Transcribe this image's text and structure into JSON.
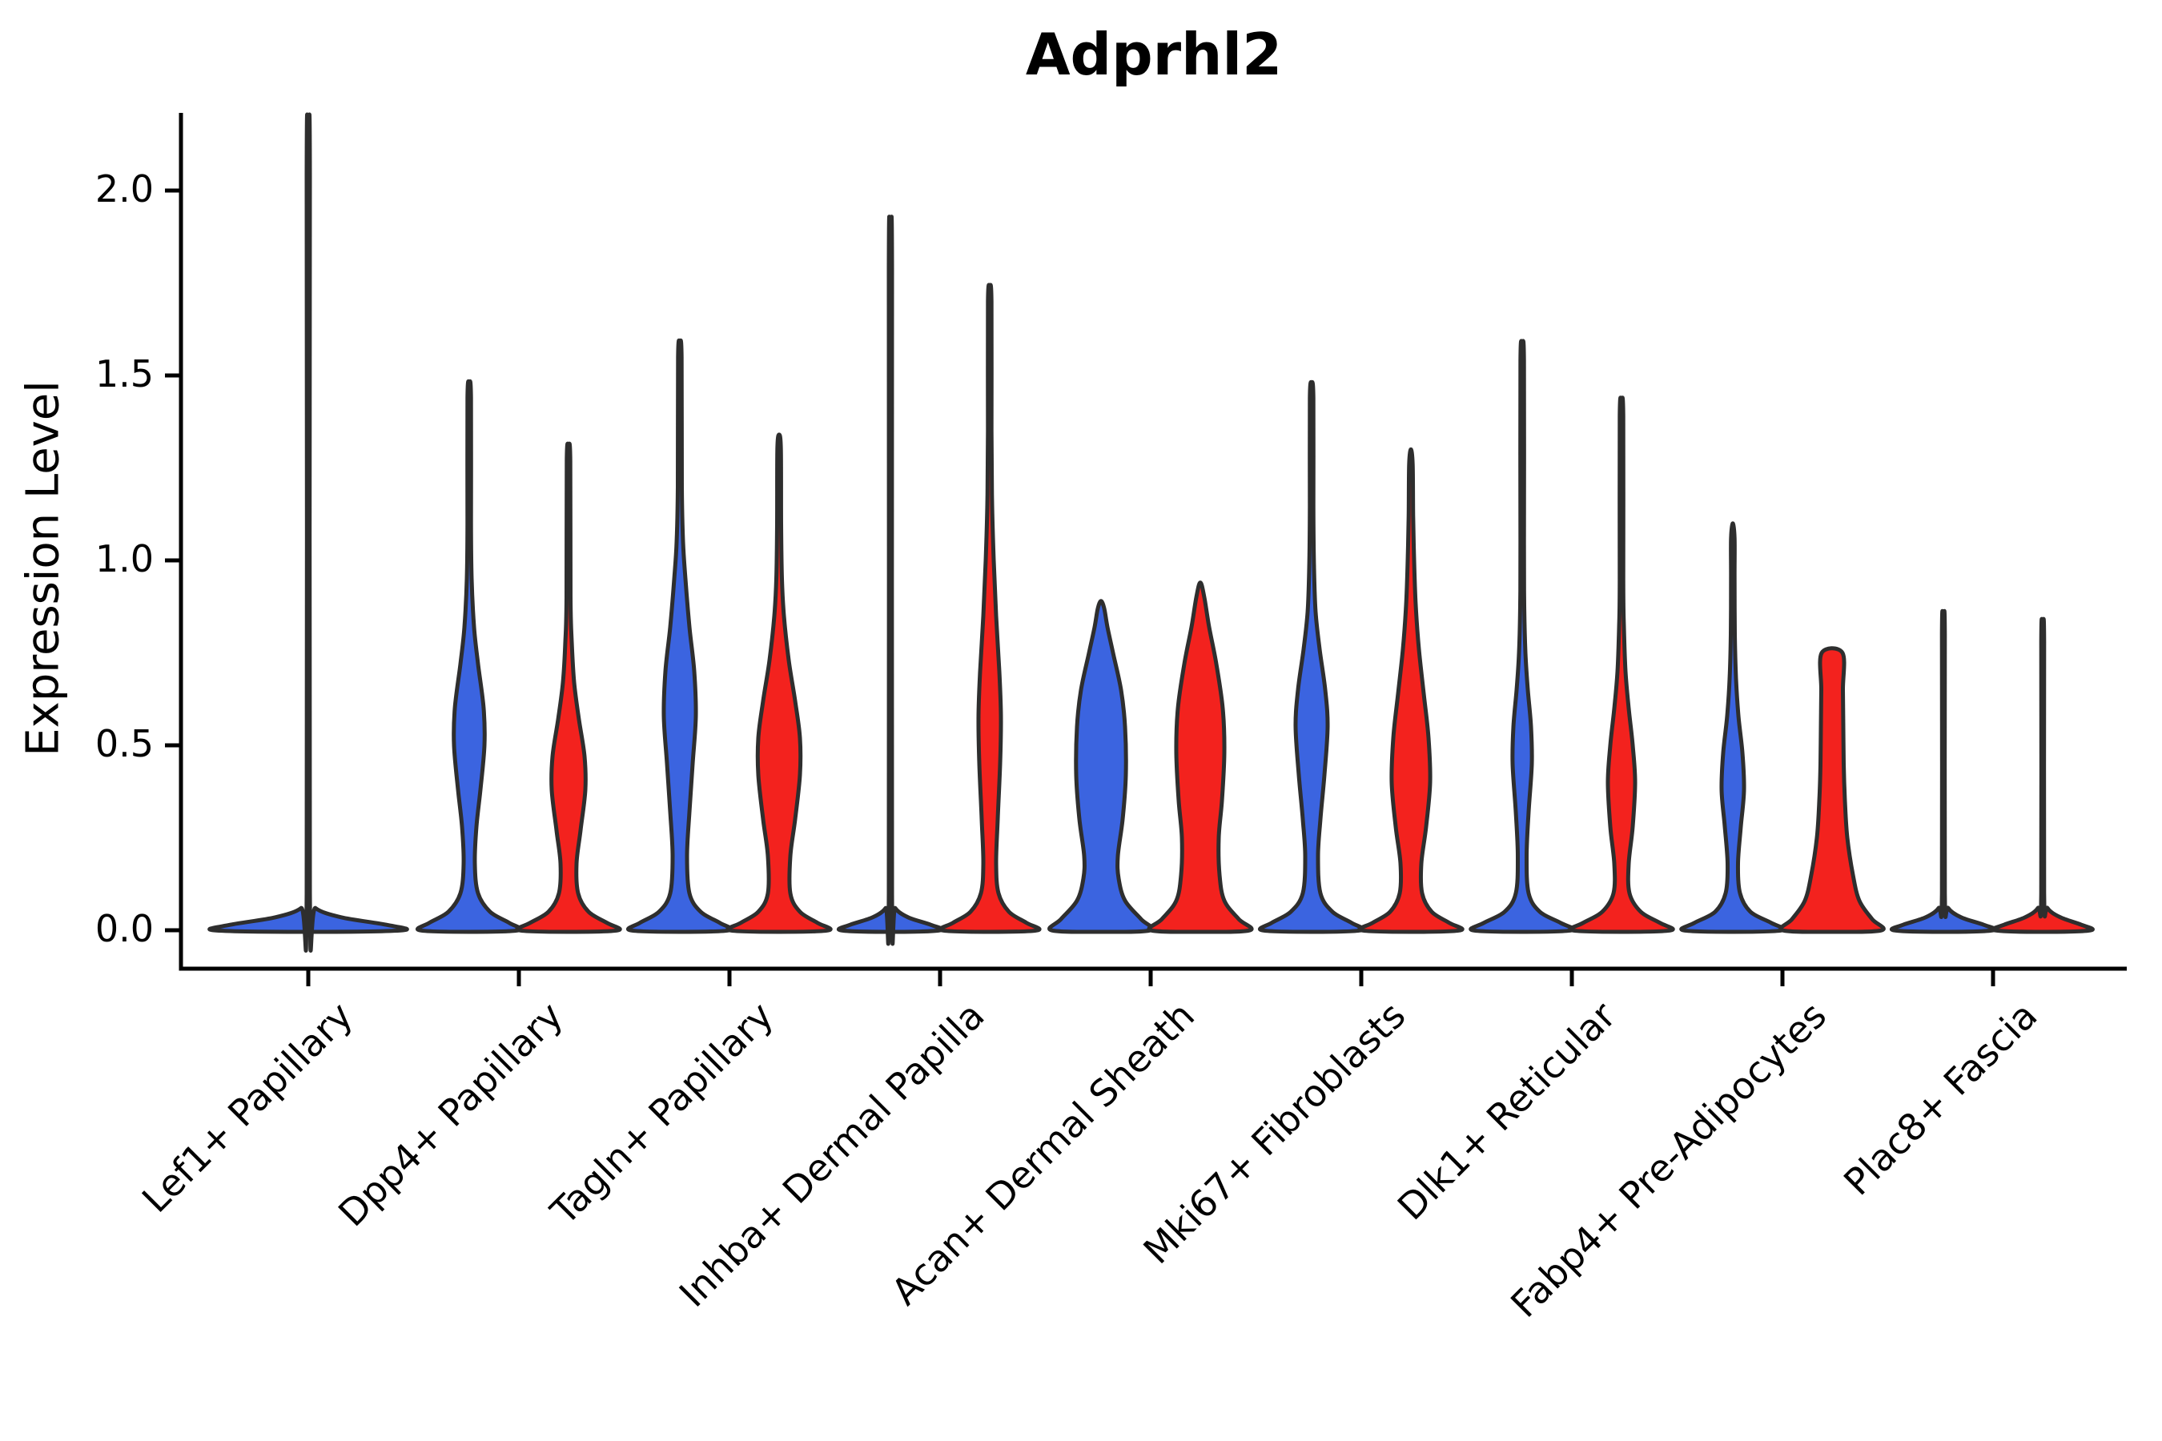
{
  "title": "Adprhl2",
  "y_axis": {
    "label": "Expression Level",
    "tick_labels": [
      "2.0",
      "1.5",
      "1.0",
      "0.5",
      "0.0"
    ],
    "tick_values": [
      2.0,
      1.5,
      1.0,
      0.5,
      0.0
    ]
  },
  "x_axis": {
    "categories": [
      "Lef1+ Papillary",
      "Dpp4+ Papillary",
      "Tagln+ Papillary",
      "Inhba+ Dermal Papilla",
      "Acan+ Dermal Sheath",
      "Mki67+ Fibroblasts",
      "Dlk1+ Reticular",
      "Fabp4+ Pre-Adipocytes",
      "Plac8+ Fascia"
    ]
  },
  "colors": {
    "blue": "#3B64E0",
    "red": "#F3221E",
    "outline": "#2E2E2E",
    "axis": "#000000",
    "background": "#FFFFFF"
  },
  "chart_data": {
    "type": "violin",
    "title": "Adprhl2",
    "xlabel": "",
    "ylabel": "Expression Level",
    "ylim": [
      -0.06,
      2.21
    ],
    "yticks": [
      0.0,
      0.5,
      1.0,
      1.5,
      2.0
    ],
    "grid": false,
    "legend": "none",
    "categories": [
      "Lef1+ Papillary",
      "Dpp4+ Papillary",
      "Tagln+ Papillary",
      "Inhba+ Dermal Papilla",
      "Acan+ Dermal Sheath",
      "Mki67+ Fibroblasts",
      "Dlk1+ Reticular",
      "Fabp4+ Pre-Adipocytes",
      "Plac8+ Fascia"
    ],
    "series": [
      {
        "name": "blue",
        "color": "#3B64E0",
        "max_expression": [
          2.1,
          1.48,
          1.59,
          1.83,
          0.89,
          1.48,
          1.58,
          1.1,
          0.83
        ]
      },
      {
        "name": "red",
        "color": "#F3221E",
        "max_expression": [
          null,
          1.31,
          1.34,
          1.74,
          0.94,
          1.3,
          1.43,
          0.75,
          0.81
        ]
      }
    ],
    "violins": [
      {
        "category_index": 0,
        "side": "single",
        "color": "blue",
        "offset": 0,
        "max": 2.1,
        "profile": [
          [
            0,
            118
          ],
          [
            0.015,
            97
          ],
          [
            0.035,
            41
          ],
          [
            0.06,
            9
          ],
          [
            0.1,
            2
          ],
          [
            2.04,
            2
          ],
          [
            2.1,
            0
          ]
        ]
      },
      {
        "category_index": 1,
        "side": "left",
        "color": "blue",
        "offset": -62,
        "max": 1.48,
        "profile": [
          [
            0,
            62
          ],
          [
            0.02,
            50
          ],
          [
            0.05,
            26
          ],
          [
            0.1,
            11
          ],
          [
            0.18,
            7
          ],
          [
            0.28,
            9
          ],
          [
            0.38,
            14
          ],
          [
            0.5,
            19
          ],
          [
            0.6,
            18
          ],
          [
            0.72,
            11
          ],
          [
            0.82,
            6
          ],
          [
            0.95,
            3
          ],
          [
            1.1,
            2.2
          ],
          [
            1.44,
            2.2
          ],
          [
            1.48,
            0
          ]
        ]
      },
      {
        "category_index": 1,
        "side": "right",
        "color": "red",
        "offset": 62,
        "max": 1.31,
        "profile": [
          [
            0,
            62
          ],
          [
            0.02,
            48
          ],
          [
            0.05,
            25
          ],
          [
            0.1,
            12
          ],
          [
            0.18,
            10
          ],
          [
            0.27,
            15
          ],
          [
            0.38,
            21
          ],
          [
            0.47,
            20
          ],
          [
            0.57,
            13
          ],
          [
            0.67,
            7
          ],
          [
            0.78,
            4
          ],
          [
            0.9,
            2.5
          ],
          [
            1.27,
            2.2
          ],
          [
            1.31,
            0
          ]
        ]
      },
      {
        "category_index": 2,
        "side": "left",
        "color": "blue",
        "offset": -62,
        "max": 1.59,
        "profile": [
          [
            0,
            62
          ],
          [
            0.02,
            50
          ],
          [
            0.05,
            26
          ],
          [
            0.1,
            12
          ],
          [
            0.2,
            9
          ],
          [
            0.32,
            12
          ],
          [
            0.45,
            16
          ],
          [
            0.58,
            20
          ],
          [
            0.7,
            18
          ],
          [
            0.82,
            12
          ],
          [
            0.95,
            7
          ],
          [
            1.05,
            4
          ],
          [
            1.2,
            2.5
          ],
          [
            1.55,
            2.2
          ],
          [
            1.59,
            0
          ]
        ]
      },
      {
        "category_index": 2,
        "side": "right",
        "color": "red",
        "offset": 62,
        "max": 1.34,
        "profile": [
          [
            0,
            62
          ],
          [
            0.02,
            48
          ],
          [
            0.05,
            26
          ],
          [
            0.1,
            14
          ],
          [
            0.2,
            14
          ],
          [
            0.3,
            20
          ],
          [
            0.42,
            26
          ],
          [
            0.52,
            26
          ],
          [
            0.62,
            20
          ],
          [
            0.73,
            12
          ],
          [
            0.85,
            6
          ],
          [
            0.95,
            3.5
          ],
          [
            1.1,
            2.5
          ],
          [
            1.3,
            2.2
          ],
          [
            1.34,
            0
          ]
        ]
      },
      {
        "category_index": 3,
        "side": "left",
        "color": "blue",
        "offset": -62,
        "max": 1.83,
        "profile": [
          [
            0,
            62
          ],
          [
            0.015,
            50
          ],
          [
            0.035,
            22
          ],
          [
            0.06,
            6
          ],
          [
            0.1,
            2
          ],
          [
            1.79,
            2
          ],
          [
            1.83,
            0
          ]
        ]
      },
      {
        "category_index": 3,
        "side": "right",
        "color": "red",
        "offset": 62,
        "max": 1.74,
        "profile": [
          [
            0,
            60
          ],
          [
            0.02,
            46
          ],
          [
            0.05,
            24
          ],
          [
            0.1,
            11
          ],
          [
            0.18,
            8
          ],
          [
            0.3,
            10
          ],
          [
            0.45,
            13
          ],
          [
            0.58,
            14
          ],
          [
            0.7,
            12
          ],
          [
            0.85,
            8
          ],
          [
            1.0,
            5
          ],
          [
            1.15,
            3
          ],
          [
            1.35,
            2.2
          ],
          [
            1.7,
            2.2
          ],
          [
            1.74,
            0
          ]
        ]
      },
      {
        "category_index": 4,
        "side": "left",
        "color": "blue",
        "offset": -62,
        "max": 0.89,
        "profile": [
          [
            0,
            62
          ],
          [
            0.03,
            50
          ],
          [
            0.08,
            30
          ],
          [
            0.14,
            22
          ],
          [
            0.2,
            21
          ],
          [
            0.3,
            27
          ],
          [
            0.42,
            31
          ],
          [
            0.55,
            30
          ],
          [
            0.65,
            25
          ],
          [
            0.75,
            15
          ],
          [
            0.82,
            8
          ],
          [
            0.87,
            4
          ],
          [
            0.89,
            0
          ]
        ]
      },
      {
        "category_index": 4,
        "side": "right",
        "color": "red",
        "offset": 62,
        "max": 0.94,
        "profile": [
          [
            0,
            62
          ],
          [
            0.03,
            48
          ],
          [
            0.08,
            30
          ],
          [
            0.15,
            24
          ],
          [
            0.25,
            23
          ],
          [
            0.35,
            27
          ],
          [
            0.48,
            30
          ],
          [
            0.6,
            28
          ],
          [
            0.72,
            20
          ],
          [
            0.82,
            11
          ],
          [
            0.9,
            5
          ],
          [
            0.94,
            0
          ]
        ]
      },
      {
        "category_index": 5,
        "side": "left",
        "color": "blue",
        "offset": -62,
        "max": 1.48,
        "profile": [
          [
            0,
            62
          ],
          [
            0.02,
            50
          ],
          [
            0.05,
            26
          ],
          [
            0.1,
            11
          ],
          [
            0.2,
            8
          ],
          [
            0.3,
            11
          ],
          [
            0.42,
            16
          ],
          [
            0.55,
            20
          ],
          [
            0.65,
            17
          ],
          [
            0.76,
            10
          ],
          [
            0.86,
            5
          ],
          [
            0.98,
            3
          ],
          [
            1.15,
            2.2
          ],
          [
            1.44,
            2.2
          ],
          [
            1.48,
            0
          ]
        ]
      },
      {
        "category_index": 5,
        "side": "right",
        "color": "red",
        "offset": 62,
        "max": 1.3,
        "profile": [
          [
            0,
            62
          ],
          [
            0.02,
            48
          ],
          [
            0.05,
            26
          ],
          [
            0.1,
            14
          ],
          [
            0.18,
            13
          ],
          [
            0.28,
            19
          ],
          [
            0.4,
            24
          ],
          [
            0.52,
            22
          ],
          [
            0.64,
            16
          ],
          [
            0.76,
            10
          ],
          [
            0.88,
            6
          ],
          [
            1.0,
            4
          ],
          [
            1.12,
            2.8
          ],
          [
            1.26,
            2.2
          ],
          [
            1.3,
            0
          ]
        ]
      },
      {
        "category_index": 6,
        "side": "left",
        "color": "blue",
        "offset": -62,
        "max": 1.58,
        "profile": [
          [
            0,
            62
          ],
          [
            0.02,
            48
          ],
          [
            0.05,
            22
          ],
          [
            0.1,
            8
          ],
          [
            0.2,
            5.5
          ],
          [
            0.32,
            8
          ],
          [
            0.45,
            12
          ],
          [
            0.55,
            11
          ],
          [
            0.65,
            7
          ],
          [
            0.75,
            4
          ],
          [
            0.88,
            2.5
          ],
          [
            1.05,
            2.2
          ],
          [
            1.54,
            2.2
          ],
          [
            1.58,
            0
          ]
        ]
      },
      {
        "category_index": 6,
        "side": "right",
        "color": "red",
        "offset": 62,
        "max": 1.43,
        "profile": [
          [
            0,
            62
          ],
          [
            0.02,
            48
          ],
          [
            0.05,
            24
          ],
          [
            0.1,
            10
          ],
          [
            0.18,
            9
          ],
          [
            0.28,
            14
          ],
          [
            0.4,
            17
          ],
          [
            0.5,
            14
          ],
          [
            0.6,
            9
          ],
          [
            0.7,
            5
          ],
          [
            0.82,
            3
          ],
          [
            0.95,
            2.2
          ],
          [
            1.39,
            2.2
          ],
          [
            1.43,
            0
          ]
        ]
      },
      {
        "category_index": 7,
        "side": "left",
        "color": "blue",
        "offset": -62,
        "max": 1.1,
        "profile": [
          [
            0,
            62
          ],
          [
            0.02,
            48
          ],
          [
            0.05,
            22
          ],
          [
            0.1,
            9
          ],
          [
            0.18,
            6.5
          ],
          [
            0.28,
            10
          ],
          [
            0.38,
            14
          ],
          [
            0.48,
            12
          ],
          [
            0.58,
            7
          ],
          [
            0.68,
            4
          ],
          [
            0.8,
            2.5
          ],
          [
            0.95,
            2.2
          ],
          [
            1.06,
            2.2
          ],
          [
            1.1,
            0
          ]
        ]
      },
      {
        "category_index": 7,
        "side": "right",
        "color": "red",
        "offset": 62,
        "max": 0.75,
        "flat_top": true,
        "profile": [
          [
            0,
            62
          ],
          [
            0.03,
            50
          ],
          [
            0.08,
            34
          ],
          [
            0.15,
            26
          ],
          [
            0.25,
            19
          ],
          [
            0.35,
            16
          ],
          [
            0.45,
            14.5
          ],
          [
            0.55,
            14
          ],
          [
            0.65,
            13.5
          ],
          [
            0.75,
            13
          ]
        ]
      },
      {
        "category_index": 8,
        "side": "left",
        "color": "blue",
        "offset": -62,
        "max": 0.83,
        "profile": [
          [
            0,
            62
          ],
          [
            0.015,
            50
          ],
          [
            0.035,
            22
          ],
          [
            0.06,
            6
          ],
          [
            0.1,
            1.8
          ],
          [
            0.8,
            1.8
          ],
          [
            0.83,
            0
          ]
        ]
      },
      {
        "category_index": 8,
        "side": "right",
        "color": "red",
        "offset": 62,
        "max": 0.81,
        "profile": [
          [
            0,
            60
          ],
          [
            0.015,
            48
          ],
          [
            0.035,
            22
          ],
          [
            0.06,
            6
          ],
          [
            0.1,
            1.8
          ],
          [
            0.78,
            1.8
          ],
          [
            0.81,
            0
          ]
        ]
      }
    ]
  }
}
